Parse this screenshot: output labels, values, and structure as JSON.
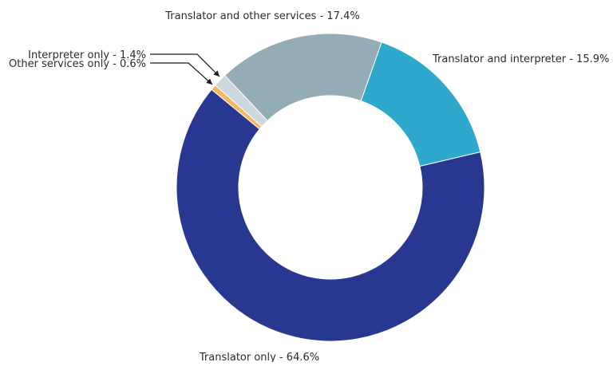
{
  "chart_data": {
    "type": "pie",
    "variant": "donut",
    "slices": [
      {
        "label": "Translator only - 64.6%",
        "category": "Translator only",
        "value": 64.6,
        "color": "#283891"
      },
      {
        "label": "Translator and interpreter - 15.9%",
        "category": "Translator and interpreter",
        "value": 15.9,
        "color": "#2ea8cd"
      },
      {
        "label": "Translator and other services - 17.4%",
        "category": "Translator and other services",
        "value": 17.4,
        "color": "#94acb5"
      },
      {
        "label": "Interpreter only - 1.4%",
        "category": "Interpreter only",
        "value": 1.4,
        "color": "#cdd8dc"
      },
      {
        "label": "Other services only - 0.6%",
        "category": "Other services only",
        "value": 0.6,
        "color": "#f6b75f"
      }
    ],
    "legend": "none"
  }
}
